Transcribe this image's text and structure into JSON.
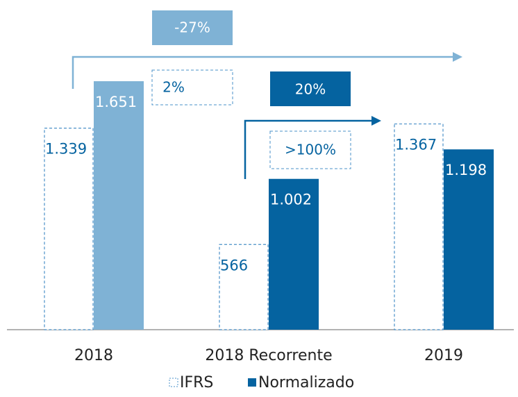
{
  "chart_data": {
    "type": "bar",
    "categories": [
      "2018",
      "2018 Recorrente",
      "2019"
    ],
    "series": [
      {
        "name": "IFRS",
        "color": "#4a90c8",
        "style": "dashed",
        "values": [
          1339,
          566,
          1367
        ],
        "value_labels": [
          "1.339",
          "566",
          "1.367"
        ]
      },
      {
        "name": "Normalizado",
        "colors": [
          "#7fb2d5",
          "#0563a0",
          "#0563a0"
        ],
        "color": "#0563a0",
        "values": [
          1651,
          1002,
          1198
        ],
        "value_labels": [
          "1.651",
          "1.002",
          "1.198"
        ]
      }
    ],
    "annotations": [
      "-27%",
      "2%",
      "20%",
      ">100%"
    ],
    "legend": "bottom"
  }
}
